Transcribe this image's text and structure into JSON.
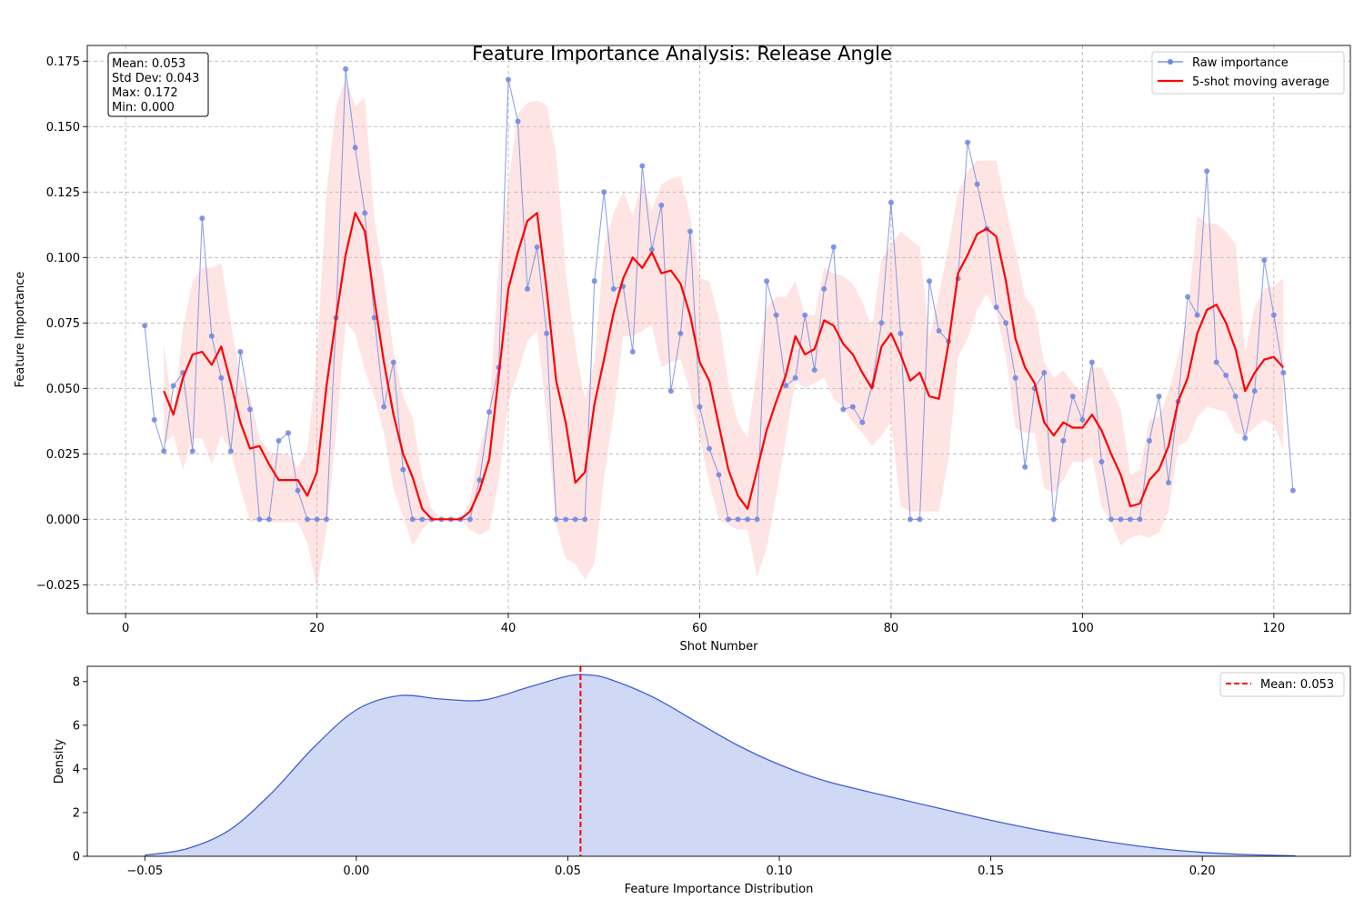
{
  "chart_data": [
    {
      "type": "line",
      "title": "Feature Importance Analysis: Release Angle",
      "xlabel": "Shot Number",
      "ylabel": "Feature Importance",
      "xlim": [
        -4,
        128
      ],
      "ylim": [
        -0.036,
        0.181
      ],
      "xticks": [
        0,
        20,
        40,
        60,
        80,
        100,
        120
      ],
      "xtick_labels": [
        "0",
        "20",
        "40",
        "60",
        "80",
        "100",
        "120"
      ],
      "yticks": [
        -0.025,
        0,
        0.025,
        0.05,
        0.075,
        0.1,
        0.125,
        0.15,
        0.175
      ],
      "ytick_labels": [
        "−0.025",
        "0.000",
        "0.025",
        "0.050",
        "0.075",
        "0.100",
        "0.125",
        "0.150",
        "0.175"
      ],
      "grid": true,
      "legend_position": "top-right",
      "stats_box": [
        "Mean: 0.053",
        "Std Dev: 0.043",
        "Max: 0.172",
        "Min: 0.000"
      ],
      "colors": {
        "raw": "#6b86e0",
        "moving_average": "#ff0000",
        "band": "#ffb3b3"
      },
      "series": [
        {
          "name": "Raw importance",
          "x_start": 2,
          "values": [
            0.074,
            0.038,
            0.026,
            0.051,
            0.056,
            0.026,
            0.115,
            0.07,
            0.054,
            0.026,
            0.064,
            0.042,
            0.0,
            0.0,
            0.03,
            0.033,
            0.011,
            0.0,
            0.0,
            0.0,
            0.077,
            0.172,
            0.142,
            0.117,
            0.077,
            0.043,
            0.06,
            0.019,
            0.0,
            0.0,
            0.0,
            0.0,
            0.0,
            0.0,
            0.0,
            0.015,
            0.041,
            0.058,
            0.168,
            0.152,
            0.088,
            0.104,
            0.071,
            0.0,
            0.0,
            0.0,
            0.0,
            0.091,
            0.125,
            0.088,
            0.089,
            0.064,
            0.135,
            0.103,
            0.12,
            0.049,
            0.071,
            0.11,
            0.043,
            0.027,
            0.017,
            0.0,
            0.0,
            0.0,
            0.0,
            0.091,
            0.078,
            0.051,
            0.054,
            0.078,
            0.057,
            0.088,
            0.104,
            0.042,
            0.043,
            0.037,
            0.051,
            0.075,
            0.121,
            0.071,
            0.0,
            0.0,
            0.091,
            0.072,
            0.068,
            0.092,
            0.144,
            0.128,
            0.111,
            0.081,
            0.075,
            0.054,
            0.02,
            0.05,
            0.056,
            0.0,
            0.03,
            0.047,
            0.038,
            0.06,
            0.022,
            0.0,
            0.0,
            0.0,
            0.0,
            0.03,
            0.047,
            0.014,
            0.045,
            0.085,
            0.078,
            0.133,
            0.06,
            0.055,
            0.047,
            0.031,
            0.049,
            0.099,
            0.078,
            0.056,
            0.011
          ]
        },
        {
          "name": "5-shot moving average",
          "x_start": 4,
          "values": [
            0.049,
            0.04,
            0.054,
            0.063,
            0.064,
            0.059,
            0.066,
            0.052,
            0.037,
            0.027,
            0.028,
            0.021,
            0.015,
            0.015,
            0.015,
            0.009,
            0.018,
            0.051,
            0.077,
            0.101,
            0.117,
            0.11,
            0.084,
            0.06,
            0.04,
            0.025,
            0.016,
            0.004,
            0.0,
            0.0,
            0.0,
            0.0,
            0.003,
            0.011,
            0.023,
            0.055,
            0.088,
            0.102,
            0.114,
            0.117,
            0.088,
            0.053,
            0.037,
            0.014,
            0.018,
            0.044,
            0.061,
            0.079,
            0.092,
            0.1,
            0.096,
            0.102,
            0.094,
            0.095,
            0.09,
            0.078,
            0.06,
            0.053,
            0.036,
            0.019,
            0.009,
            0.004,
            0.019,
            0.034,
            0.045,
            0.055,
            0.07,
            0.063,
            0.065,
            0.076,
            0.074,
            0.067,
            0.063,
            0.056,
            0.05,
            0.066,
            0.071,
            0.063,
            0.053,
            0.056,
            0.047,
            0.046,
            0.067,
            0.094,
            0.101,
            0.109,
            0.111,
            0.108,
            0.091,
            0.069,
            0.058,
            0.052,
            0.037,
            0.032,
            0.037,
            0.035,
            0.035,
            0.04,
            0.034,
            0.025,
            0.017,
            0.005,
            0.006,
            0.015,
            0.019,
            0.028,
            0.045,
            0.054,
            0.071,
            0.08,
            0.082,
            0.075,
            0.065,
            0.049,
            0.056,
            0.061,
            0.062,
            0.058
          ],
          "band_lower": [
            0.029,
            0.032,
            0.019,
            0.031,
            0.031,
            0.021,
            0.032,
            0.026,
            0.012,
            -0.001,
            0.0,
            -0.001,
            -0.001,
            -0.001,
            -0.001,
            -0.009,
            -0.026,
            -0.004,
            0.033,
            0.075,
            0.071,
            0.057,
            0.047,
            0.033,
            0.012,
            0.001,
            -0.01,
            -0.004,
            0.0,
            0.0,
            0.0,
            0.0,
            -0.004,
            -0.006,
            -0.004,
            0.015,
            0.045,
            0.056,
            0.068,
            0.072,
            0.039,
            -0.002,
            -0.015,
            -0.017,
            -0.023,
            -0.017,
            0.016,
            0.04,
            0.07,
            0.07,
            0.072,
            0.074,
            0.058,
            0.06,
            0.061,
            0.049,
            0.031,
            0.014,
            0.0,
            -0.002,
            -0.004,
            -0.004,
            -0.022,
            -0.011,
            0.009,
            0.031,
            0.053,
            0.05,
            0.052,
            0.054,
            0.046,
            0.043,
            0.037,
            0.033,
            0.028,
            0.032,
            0.037,
            0.005,
            0.003,
            0.003,
            0.003,
            0.003,
            0.023,
            0.062,
            0.069,
            0.08,
            0.086,
            0.079,
            0.062,
            0.035,
            0.033,
            0.033,
            0.012,
            0.01,
            0.015,
            0.022,
            0.022,
            0.024,
            0.005,
            -0.001,
            -0.01,
            -0.007,
            -0.006,
            -0.007,
            -0.005,
            0.003,
            0.028,
            0.03,
            0.039,
            0.043,
            0.042,
            0.041,
            0.033,
            0.032,
            0.035,
            0.038,
            0.036,
            0.027
          ],
          "band_upper": [
            0.067,
            0.04,
            0.073,
            0.091,
            0.096,
            0.096,
            0.098,
            0.075,
            0.054,
            0.047,
            0.031,
            0.026,
            0.025,
            0.025,
            0.02,
            0.026,
            0.062,
            0.125,
            0.158,
            0.168,
            0.158,
            0.161,
            0.115,
            0.092,
            0.064,
            0.047,
            0.039,
            0.016,
            0.004,
            0.0,
            0.0,
            0.0,
            0.007,
            0.027,
            0.04,
            0.098,
            0.128,
            0.155,
            0.159,
            0.16,
            0.158,
            0.14,
            0.095,
            0.066,
            0.046,
            0.06,
            0.104,
            0.117,
            0.125,
            0.116,
            0.129,
            0.118,
            0.128,
            0.13,
            0.131,
            0.116,
            0.092,
            0.091,
            0.077,
            0.052,
            0.037,
            0.031,
            0.058,
            0.081,
            0.085,
            0.085,
            0.091,
            0.078,
            0.078,
            0.096,
            0.094,
            0.093,
            0.09,
            0.083,
            0.073,
            0.099,
            0.105,
            0.11,
            0.107,
            0.104,
            0.069,
            0.086,
            0.104,
            0.125,
            0.133,
            0.137,
            0.137,
            0.137,
            0.119,
            0.103,
            0.085,
            0.08,
            0.06,
            0.054,
            0.057,
            0.052,
            0.048,
            0.058,
            0.058,
            0.05,
            0.042,
            0.017,
            0.019,
            0.038,
            0.039,
            0.049,
            0.062,
            0.078,
            0.116,
            0.113,
            0.113,
            0.11,
            0.105,
            0.064,
            0.081,
            0.088,
            0.089,
            0.092
          ]
        }
      ]
    },
    {
      "type": "area",
      "xlabel": "Feature Importance Distribution",
      "ylabel": "Density",
      "xlim": [
        -0.0636,
        0.235
      ],
      "ylim": [
        0,
        8.7
      ],
      "xticks": [
        -0.05,
        0,
        0.05,
        0.1,
        0.15,
        0.2
      ],
      "xtick_labels": [
        "−0.05",
        "0.00",
        "0.05",
        "0.10",
        "0.15",
        "0.20"
      ],
      "yticks": [
        0,
        2,
        4,
        6,
        8
      ],
      "ytick_labels": [
        "0",
        "2",
        "4",
        "6",
        "8"
      ],
      "grid": false,
      "legend_position": "top-right",
      "colors": {
        "fill": "#cfd8f5",
        "line": "#4060d0",
        "mean_line": "#ff0000"
      },
      "mean_value": 0.053,
      "mean_label": "Mean: 0.053",
      "series": [
        {
          "x": [
            -0.05,
            -0.04,
            -0.03,
            -0.02,
            -0.01,
            0.0,
            0.01,
            0.02,
            0.03,
            0.04,
            0.05,
            0.055,
            0.06,
            0.07,
            0.08,
            0.09,
            0.1,
            0.11,
            0.12,
            0.13,
            0.14,
            0.15,
            0.16,
            0.17,
            0.18,
            0.19,
            0.2,
            0.21,
            0.222
          ],
          "values": [
            0.05,
            0.35,
            1.2,
            2.9,
            5.0,
            6.7,
            7.35,
            7.2,
            7.15,
            7.7,
            8.25,
            8.3,
            8.1,
            7.3,
            6.2,
            5.1,
            4.2,
            3.5,
            3.0,
            2.55,
            2.1,
            1.65,
            1.25,
            0.9,
            0.6,
            0.35,
            0.18,
            0.08,
            0.02
          ]
        }
      ]
    }
  ]
}
